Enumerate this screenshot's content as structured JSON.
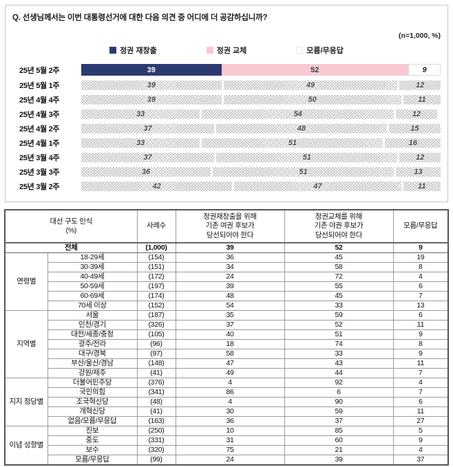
{
  "chart_panel": {
    "question": "Q. 선생님께서는 이번 대통령선거에 대한 다음 의견 중 어디에 더 공감하십니까?",
    "sample_note": "(n=1,000, %)",
    "legend": [
      {
        "label": "정권 재창출",
        "swatch": "navy",
        "color": "#2c3a72"
      },
      {
        "label": "정권 교체",
        "swatch": "pink",
        "color": "#f9c9d1"
      },
      {
        "label": "모름/무응답",
        "swatch": "hatch",
        "color": "hatch-pattern"
      }
    ]
  },
  "chart_data": {
    "type": "bar",
    "stacked": true,
    "orientation": "horizontal",
    "xlim": [
      0,
      100
    ],
    "highlight_row": 0,
    "categories": [
      "25년 5월 2주",
      "25년 5월 1주",
      "25년 4월 4주",
      "25년 4월 3주",
      "25년 4월 2주",
      "25년 4월 1주",
      "25년 3월 4주",
      "25년 3월 3주",
      "25년 3월 2주"
    ],
    "series": [
      {
        "name": "정권 재창출",
        "values": [
          39,
          39,
          39,
          33,
          37,
          33,
          37,
          36,
          42
        ]
      },
      {
        "name": "정권 교체",
        "values": [
          52,
          49,
          50,
          54,
          48,
          51,
          51,
          51,
          47
        ]
      },
      {
        "name": "모름/무응답",
        "values": [
          9,
          12,
          11,
          12,
          15,
          16,
          12,
          13,
          11
        ]
      }
    ]
  },
  "table": {
    "col_headers": [
      "대선 구도 인식\n(%)",
      "사례수",
      "정권재창출을 위해\n기존 여권 후보가\n당선되어야 한다",
      "정권교체를 위해\n기존 야권 후보가\n당선되어야 한다",
      "모름/무응답"
    ],
    "total_row": {
      "label": "전체",
      "n": "(1,000)",
      "values": [
        39,
        52,
        9
      ]
    },
    "groups": [
      {
        "name": "연령별",
        "rows": [
          {
            "label": "18-29세",
            "n": "(154)",
            "values": [
              36,
              45,
              19
            ]
          },
          {
            "label": "30-39세",
            "n": "(151)",
            "values": [
              34,
              58,
              8
            ]
          },
          {
            "label": "40-49세",
            "n": "(172)",
            "values": [
              24,
              72,
              4
            ]
          },
          {
            "label": "50-59세",
            "n": "(197)",
            "values": [
              39,
              55,
              6
            ]
          },
          {
            "label": "60-69세",
            "n": "(174)",
            "values": [
              48,
              45,
              7
            ]
          },
          {
            "label": "70세 이상",
            "n": "(152)",
            "values": [
              54,
              33,
              13
            ]
          }
        ]
      },
      {
        "name": "지역별",
        "rows": [
          {
            "label": "서울",
            "n": "(187)",
            "values": [
              35,
              59,
              6
            ]
          },
          {
            "label": "인천/경기",
            "n": "(326)",
            "values": [
              37,
              52,
              11
            ]
          },
          {
            "label": "대전/세종/충청",
            "n": "(105)",
            "values": [
              40,
              51,
              9
            ]
          },
          {
            "label": "광주/전라",
            "n": "(96)",
            "values": [
              18,
              74,
              8
            ]
          },
          {
            "label": "대구/경북",
            "n": "(97)",
            "values": [
              58,
              33,
              9
            ]
          },
          {
            "label": "부산/울산/경남",
            "n": "(148)",
            "values": [
              47,
              43,
              11
            ]
          },
          {
            "label": "강원/제주",
            "n": "(41)",
            "values": [
              49,
              44,
              7
            ]
          }
        ]
      },
      {
        "name": "지지\n정당별",
        "rows": [
          {
            "label": "더불어민주당",
            "n": "(376)",
            "values": [
              4,
              92,
              4
            ]
          },
          {
            "label": "국민의힘",
            "n": "(341)",
            "values": [
              86,
              6,
              7
            ]
          },
          {
            "label": "조국혁신당",
            "n": "(48)",
            "values": [
              4,
              90,
              6
            ]
          },
          {
            "label": "개혁신당",
            "n": "(41)",
            "values": [
              30,
              59,
              11
            ]
          },
          {
            "label": "없음/모름/무응답",
            "n": "(163)",
            "values": [
              36,
              37,
              27
            ]
          }
        ]
      },
      {
        "name": "이념\n성향별",
        "rows": [
          {
            "label": "진보",
            "n": "(250)",
            "values": [
              10,
              85,
              5
            ]
          },
          {
            "label": "중도",
            "n": "(331)",
            "values": [
              31,
              60,
              9
            ]
          },
          {
            "label": "보수",
            "n": "(320)",
            "values": [
              75,
              21,
              4
            ]
          },
          {
            "label": "모름/무응답",
            "n": "(99)",
            "values": [
              24,
              39,
              37
            ]
          }
        ]
      }
    ]
  }
}
